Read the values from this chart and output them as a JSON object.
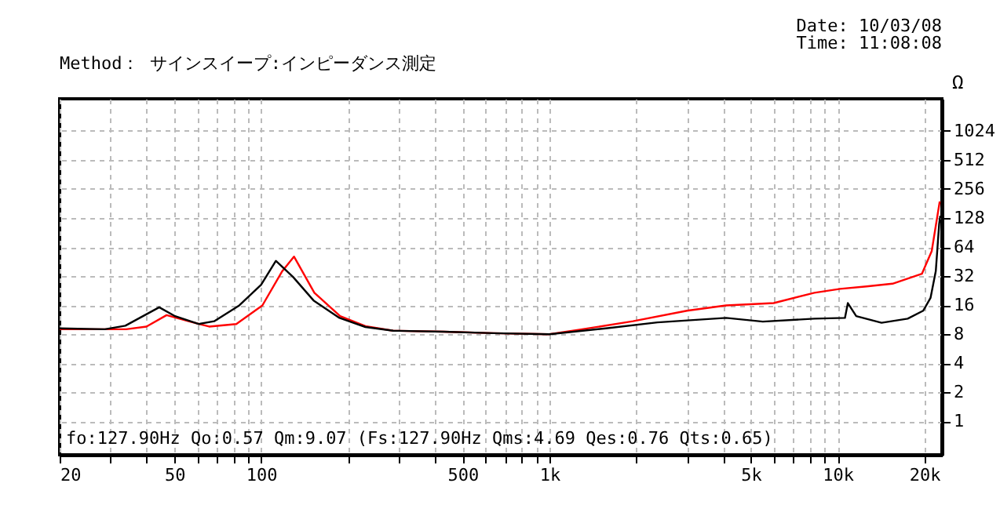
{
  "chart_data": {
    "type": "line",
    "title": "Method： サインスイープ:インピーダンス測定",
    "ylabel": "Ω",
    "annotations": [
      "Date: 10/03/08",
      "Time: 11:08:08",
      "fo:127.90Hz  Qo:0.57 Qm:9.07 (Fs:127.90Hz  Qms:4.69 Qes:0.76 Qts:0.65)"
    ],
    "log": "xy",
    "grid": true,
    "marker": "none",
    "line_style": "solid",
    "xlim": [
      20,
      23000
    ],
    "ylim": [
      0.45,
      2200
    ],
    "xticks": [
      20,
      {
        "value": 30,
        "label": null
      },
      {
        "value": 40,
        "label": null
      },
      50,
      {
        "value": 60,
        "label": null
      },
      {
        "value": 70,
        "label": null
      },
      {
        "value": 80,
        "label": null
      },
      {
        "value": 90,
        "label": null
      },
      100,
      {
        "value": 200,
        "label": null
      },
      {
        "value": 300,
        "label": null
      },
      {
        "value": 400,
        "label": null
      },
      500,
      {
        "value": 600,
        "label": null
      },
      {
        "value": 700,
        "label": null
      },
      {
        "value": 800,
        "label": null
      },
      {
        "value": 900,
        "label": null
      },
      {
        "value": 1000,
        "label": "1k"
      },
      {
        "value": 2000,
        "label": null
      },
      {
        "value": 3000,
        "label": null
      },
      {
        "value": 4000,
        "label": null
      },
      {
        "value": 5000,
        "label": "5k"
      },
      {
        "value": 6000,
        "label": null
      },
      {
        "value": 7000,
        "label": null
      },
      {
        "value": 8000,
        "label": null
      },
      {
        "value": 9000,
        "label": null
      },
      {
        "value": 10000,
        "label": "10k"
      },
      {
        "value": 20000,
        "label": "20k"
      }
    ],
    "yticks": [
      1,
      2,
      4,
      8,
      16,
      32,
      64,
      128,
      256,
      512,
      1024
    ],
    "series": [
      {
        "color": "#ff0000",
        "x": [
          20,
          30,
          34,
          40,
          47,
          56,
          66,
          82,
          101,
          118,
          130,
          153,
          188,
          230,
          287,
          430,
          640,
          1000,
          1300,
          1950,
          3000,
          4100,
          6000,
          8300,
          10200,
          12600,
          15500,
          19600,
          21200,
          22600
        ],
        "values": [
          9.0,
          9.0,
          9.0,
          9.6,
          12.6,
          10.9,
          9.6,
          10.2,
          15.9,
          35.5,
          51,
          21.5,
          12.3,
          9.7,
          8.7,
          8.5,
          8.2,
          8.0,
          9.0,
          10.9,
          14.0,
          15.9,
          16.8,
          21.5,
          23.6,
          25,
          26.7,
          33.8,
          58,
          190
        ]
      },
      {
        "color": "#000000",
        "x": [
          20,
          28.7,
          33.8,
          44.3,
          50.3,
          60.7,
          68.7,
          84,
          100,
          112.5,
          129,
          152,
          187,
          230,
          287,
          430,
          640,
          1000,
          1570,
          2370,
          4100,
          5500,
          8300,
          10600,
          10850,
          11600,
          14200,
          17500,
          19800,
          21000,
          21900,
          22500,
          22700
        ],
        "values": [
          9.2,
          9.0,
          9.8,
          15.2,
          12.3,
          10.2,
          10.9,
          15.9,
          26,
          46,
          31.4,
          17.9,
          11.8,
          9.5,
          8.7,
          8.5,
          8.2,
          8.0,
          9.2,
          10.6,
          11.8,
          10.8,
          11.6,
          11.8,
          16.8,
          12.3,
          10.5,
          11.6,
          14,
          19,
          36,
          111,
          135
        ]
      }
    ]
  }
}
